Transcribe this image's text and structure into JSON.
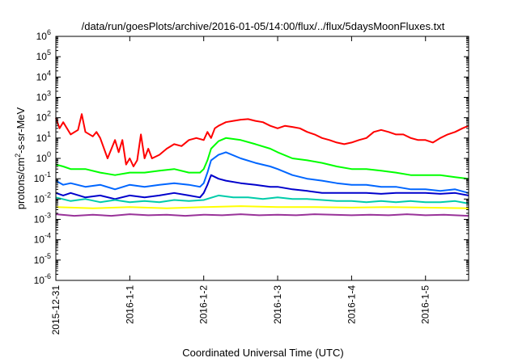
{
  "chart_data": {
    "type": "line",
    "title": "/data/run/goesPlots/archive/2016-01-05/14:00/flux/../flux/5daysMoonFluxes.txt",
    "xlabel": "Coordinated Universal Time (UTC)",
    "ylabel": "protons/cm²-s-sr-MeV",
    "yscale": "log",
    "ylim": [
      1e-06,
      1000000.0
    ],
    "xlim": [
      "2015-12-31 00:00",
      "2016-01-05 14:00"
    ],
    "x_ticks": [
      "2015-12-31",
      "2016-1-1",
      "2016-1-2",
      "2016-1-3",
      "2016-1-4",
      "2016-1-5"
    ],
    "y_ticks": [
      {
        "base": "10",
        "exp": "-6"
      },
      {
        "base": "10",
        "exp": "-5"
      },
      {
        "base": "10",
        "exp": "-4"
      },
      {
        "base": "10",
        "exp": "-3"
      },
      {
        "base": "10",
        "exp": "-2"
      },
      {
        "base": "10",
        "exp": "-1"
      },
      {
        "base": "10",
        "exp": "0"
      },
      {
        "base": "10",
        "exp": "1"
      },
      {
        "base": "10",
        "exp": "2"
      },
      {
        "base": "10",
        "exp": "3"
      },
      {
        "base": "10",
        "exp": "4"
      },
      {
        "base": "10",
        "exp": "5"
      },
      {
        "base": "10",
        "exp": "6"
      }
    ],
    "x_unit": "days after 2015-12-31 00:00",
    "grid": false,
    "legend": false,
    "series": [
      {
        "color": "#ff0000",
        "x": [
          0,
          0.05,
          0.1,
          0.2,
          0.3,
          0.35,
          0.4,
          0.5,
          0.55,
          0.6,
          0.7,
          0.8,
          0.85,
          0.9,
          0.95,
          1.0,
          1.05,
          1.1,
          1.15,
          1.2,
          1.25,
          1.3,
          1.4,
          1.5,
          1.6,
          1.7,
          1.8,
          1.9,
          2.0,
          2.05,
          2.1,
          2.15,
          2.2,
          2.3,
          2.4,
          2.5,
          2.6,
          2.7,
          2.8,
          2.9,
          3.0,
          3.1,
          3.2,
          3.3,
          3.4,
          3.5,
          3.6,
          3.7,
          3.8,
          3.9,
          4.0,
          4.1,
          4.2,
          4.3,
          4.4,
          4.5,
          4.6,
          4.7,
          4.8,
          4.9,
          5.0,
          5.1,
          5.2,
          5.3,
          5.4,
          5.5,
          5.58
        ],
        "y": [
          100,
          30,
          60,
          15,
          25,
          150,
          20,
          12,
          20,
          10,
          1,
          8,
          2,
          8,
          0.5,
          1,
          0.4,
          0.8,
          15,
          1,
          3,
          1,
          1.5,
          3,
          5,
          4,
          8,
          10,
          8,
          20,
          10,
          30,
          40,
          60,
          70,
          80,
          85,
          70,
          60,
          40,
          30,
          40,
          35,
          30,
          20,
          15,
          10,
          8,
          6,
          5,
          6,
          8,
          10,
          20,
          25,
          20,
          15,
          15,
          10,
          8,
          8,
          6,
          10,
          15,
          20,
          30,
          40
        ]
      },
      {
        "color": "#00ff00",
        "x": [
          0,
          0.1,
          0.2,
          0.4,
          0.6,
          0.8,
          1.0,
          1.2,
          1.4,
          1.6,
          1.8,
          1.95,
          2.0,
          2.05,
          2.1,
          2.2,
          2.3,
          2.5,
          2.7,
          2.9,
          3.0,
          3.2,
          3.4,
          3.6,
          3.8,
          4.0,
          4.2,
          4.4,
          4.6,
          4.8,
          5.0,
          5.2,
          5.4,
          5.58
        ],
        "y": [
          0.5,
          0.4,
          0.3,
          0.3,
          0.2,
          0.15,
          0.2,
          0.2,
          0.25,
          0.3,
          0.2,
          0.2,
          0.3,
          0.8,
          3,
          7,
          10,
          8,
          5,
          3,
          2,
          1,
          0.8,
          0.6,
          0.4,
          0.3,
          0.3,
          0.25,
          0.2,
          0.15,
          0.15,
          0.15,
          0.12,
          0.1
        ]
      },
      {
        "color": "#0066ff",
        "x": [
          0,
          0.1,
          0.2,
          0.4,
          0.6,
          0.8,
          1.0,
          1.2,
          1.4,
          1.6,
          1.8,
          1.95,
          2.0,
          2.05,
          2.1,
          2.2,
          2.3,
          2.5,
          2.7,
          2.9,
          3.0,
          3.2,
          3.4,
          3.6,
          3.8,
          4.0,
          4.2,
          4.4,
          4.6,
          4.8,
          5.0,
          5.2,
          5.4,
          5.58
        ],
        "y": [
          0.08,
          0.05,
          0.06,
          0.04,
          0.05,
          0.03,
          0.05,
          0.04,
          0.05,
          0.06,
          0.05,
          0.04,
          0.06,
          0.2,
          0.8,
          1.5,
          2,
          1,
          0.6,
          0.4,
          0.3,
          0.15,
          0.1,
          0.08,
          0.06,
          0.05,
          0.05,
          0.04,
          0.04,
          0.03,
          0.03,
          0.025,
          0.03,
          0.02
        ]
      },
      {
        "color": "#0000cc",
        "x": [
          0,
          0.1,
          0.2,
          0.4,
          0.6,
          0.8,
          1.0,
          1.2,
          1.4,
          1.6,
          1.8,
          1.95,
          2.0,
          2.05,
          2.1,
          2.2,
          2.3,
          2.5,
          2.7,
          2.9,
          3.0,
          3.2,
          3.4,
          3.6,
          3.8,
          4.0,
          4.2,
          4.4,
          4.6,
          4.8,
          5.0,
          5.2,
          5.4,
          5.58
        ],
        "y": [
          0.02,
          0.015,
          0.02,
          0.012,
          0.015,
          0.01,
          0.015,
          0.012,
          0.015,
          0.02,
          0.015,
          0.012,
          0.02,
          0.05,
          0.15,
          0.1,
          0.08,
          0.06,
          0.05,
          0.04,
          0.04,
          0.03,
          0.025,
          0.02,
          0.02,
          0.02,
          0.02,
          0.018,
          0.02,
          0.02,
          0.02,
          0.018,
          0.02,
          0.015
        ]
      },
      {
        "color": "#00ccaa",
        "x": [
          0,
          0.2,
          0.4,
          0.6,
          0.8,
          1.0,
          1.2,
          1.4,
          1.6,
          1.8,
          2.0,
          2.2,
          2.4,
          2.6,
          2.8,
          3.0,
          3.2,
          3.4,
          3.6,
          3.8,
          4.0,
          4.2,
          4.4,
          4.6,
          4.8,
          5.0,
          5.2,
          5.4,
          5.58
        ],
        "y": [
          0.012,
          0.008,
          0.01,
          0.007,
          0.009,
          0.007,
          0.008,
          0.007,
          0.009,
          0.008,
          0.009,
          0.015,
          0.012,
          0.012,
          0.01,
          0.012,
          0.01,
          0.01,
          0.009,
          0.008,
          0.008,
          0.007,
          0.008,
          0.007,
          0.008,
          0.007,
          0.007,
          0.008,
          0.006
        ]
      },
      {
        "color": "#ffff00",
        "x": [
          0,
          0.5,
          1.0,
          1.5,
          2.0,
          2.5,
          3.0,
          3.5,
          4.0,
          4.5,
          5.0,
          5.58
        ],
        "y": [
          0.004,
          0.0035,
          0.004,
          0.0035,
          0.004,
          0.0045,
          0.004,
          0.004,
          0.0038,
          0.004,
          0.0038,
          0.0035
        ]
      },
      {
        "color": "#993399",
        "x": [
          0,
          0.25,
          0.5,
          0.75,
          1.0,
          1.25,
          1.5,
          1.75,
          2.0,
          2.25,
          2.5,
          2.75,
          3.0,
          3.25,
          3.5,
          3.75,
          4.0,
          4.25,
          4.5,
          4.75,
          5.0,
          5.25,
          5.58
        ],
        "y": [
          0.0018,
          0.0015,
          0.0017,
          0.0015,
          0.0018,
          0.0016,
          0.0017,
          0.0015,
          0.0017,
          0.0016,
          0.0018,
          0.0016,
          0.0017,
          0.0016,
          0.0018,
          0.0017,
          0.0016,
          0.0017,
          0.0016,
          0.0018,
          0.0016,
          0.0017,
          0.0015
        ]
      }
    ]
  }
}
